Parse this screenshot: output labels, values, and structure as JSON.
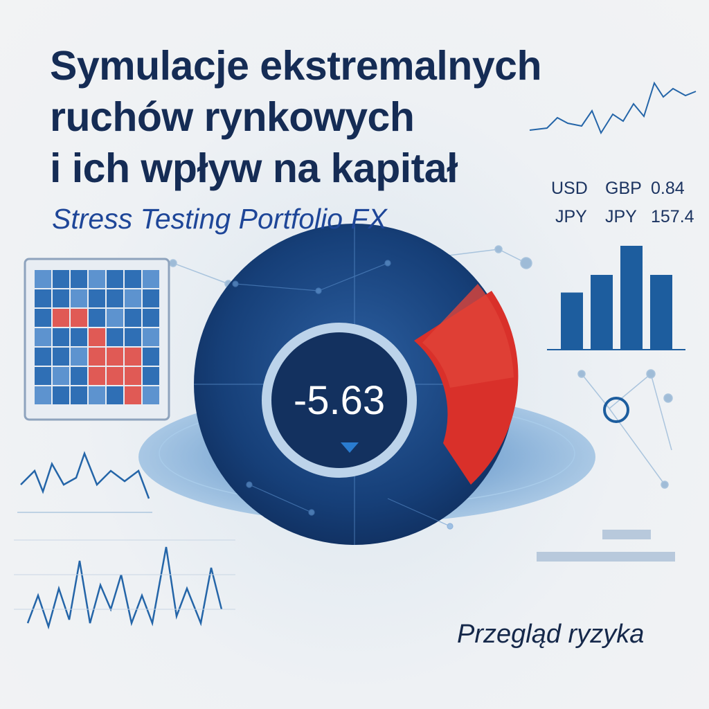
{
  "title": {
    "lines": [
      "Symulacje ekstremalnych",
      "ruchów rynkowych",
      "i ich wpływ na kapitał"
    ]
  },
  "subtitle": "Stress Testing Portfolio FX",
  "fx_rates": {
    "rows": [
      {
        "base": "USD",
        "quote": "GBP",
        "rate": "0.84"
      },
      {
        "base": "JPY",
        "quote": "JPY",
        "rate": "157.4"
      }
    ]
  },
  "gauge": {
    "value": "-5.63",
    "direction_icon": "triangle-down-icon",
    "colors": {
      "navy": "#143a6e",
      "red": "#d9302a",
      "blue": "#2a6fb0"
    }
  },
  "bar_chart": {
    "levels": [
      0.55,
      0.72,
      1.0,
      0.72
    ],
    "color": "#1d5d9e"
  },
  "footer": "Przegląd ryzyka"
}
